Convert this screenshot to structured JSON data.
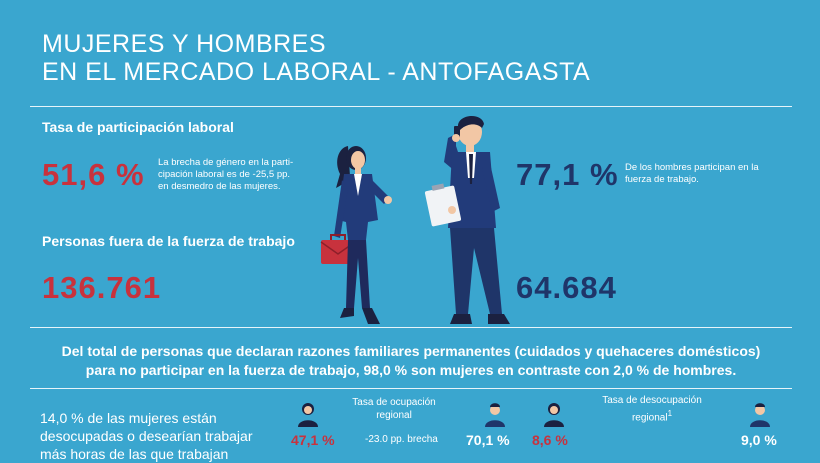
{
  "title": {
    "line1": "MUJERES Y HOMBRES",
    "line2": "EN EL MERCADO LABORAL - ANTOFAGASTA"
  },
  "participation": {
    "label": "Tasa de participación laboral",
    "women_value": "51,6 %",
    "women_note_lines": [
      "La brecha de género en la parti-",
      "cipación laboral es de -25,5 pp.",
      "en desmedro de las mujeres."
    ],
    "men_value": "77,1 %",
    "men_note_lines": [
      "De los hombres participan en la",
      "fuerza de trabajo."
    ]
  },
  "outside": {
    "label": "Personas fuera de la fuerza de trabajo",
    "women_value": "136.761",
    "men_value": "64.684"
  },
  "family_reasons": {
    "line1": "Del total de personas que declaran razones familiares permanentes (cuidados y quehaceres domésticos)",
    "line2": "para no participar en la fuerza de trabajo, 98,0 % son mujeres en contraste con 2,0 % de hombres."
  },
  "underemployment": {
    "lines": [
      "14,0 % de las mujeres están",
      "desocupadas o desearían trabajar",
      "más horas de las que trabajan"
    ]
  },
  "occupation": {
    "header_lines": [
      "Tasa de ocupación",
      "regional"
    ],
    "women": "47,1 %",
    "gap": "-23.0 pp. brecha",
    "men": "70,1 %"
  },
  "unemployment": {
    "header_lines": [
      "Tasa de desocupación",
      "regional"
    ],
    "footnote": "1",
    "women": "8,6 %",
    "men": "9,0 %"
  },
  "colors": {
    "background": "#3aa6cf",
    "women_accent": "#c8323d",
    "men_accent": "#1f3569"
  },
  "icons": [
    "woman-figure-icon",
    "man-figure-icon",
    "briefcase-icon",
    "clipboard-icon",
    "woman-avatar-icon",
    "man-avatar-icon"
  ]
}
